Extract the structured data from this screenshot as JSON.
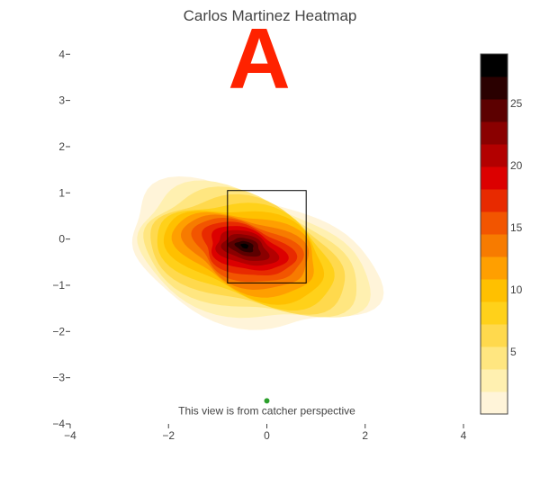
{
  "colors": {
    "plot_bg": "#ffffff",
    "axis_text": "#444444",
    "letter": "#ff2200",
    "marker": "#2ca02c",
    "strike_zone": "#000000",
    "colorscale": [
      "#ffffff",
      "#fff4d9",
      "#fff0b0",
      "#ffe680",
      "#ffd94d",
      "#ffd11a",
      "#ffc000",
      "#ff9f00",
      "#f77b00",
      "#f25500",
      "#e82a00",
      "#dc0000",
      "#b30000",
      "#8a0000",
      "#5c0000",
      "#2a0000",
      "#000000"
    ]
  },
  "chart_data": {
    "type": "heatmap",
    "title": "Carlos Martinez Heatmap",
    "annotation_letter": "A",
    "note": "This view is from catcher perspective",
    "xlim": [
      -4,
      4
    ],
    "ylim": [
      -4,
      4.2
    ],
    "x_ticks": [
      -4,
      -2,
      0,
      2,
      4
    ],
    "y_ticks": [
      -4,
      -3,
      -2,
      -1,
      0,
      1,
      2,
      3,
      4
    ],
    "x_tick_labels": [
      "−4",
      "−2",
      "0",
      "2",
      "4"
    ],
    "y_tick_labels": [
      "−4",
      "−3",
      "−2",
      "−1",
      "0",
      "1",
      "2",
      "3",
      "4"
    ],
    "strike_zone": {
      "x": [
        -0.8,
        0.8
      ],
      "y": [
        -0.95,
        1.05
      ]
    },
    "density_peak": {
      "x": -0.45,
      "y": -0.15,
      "value": 27
    },
    "marker_point": {
      "x": 0,
      "y": -3.5
    },
    "colorbar": {
      "min": 0,
      "max": 29,
      "tick_values": [
        5,
        10,
        15,
        20,
        25
      ],
      "tick_labels": [
        "5",
        "10",
        "15",
        "20",
        "25"
      ]
    }
  }
}
